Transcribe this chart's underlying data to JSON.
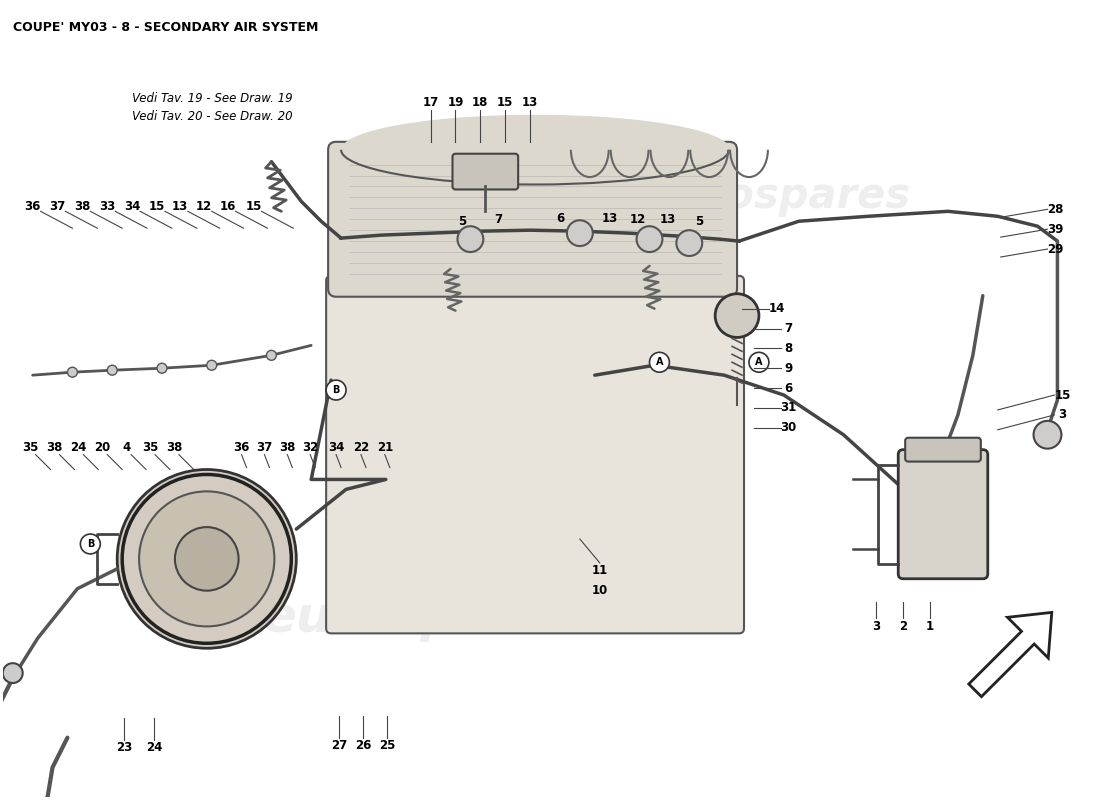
{
  "title": "COUPE' MY03 - 8 - SECONDARY AIR SYSTEM",
  "title_fontsize": 9,
  "bg_color": "#ffffff",
  "fig_width": 11.0,
  "fig_height": 8.0,
  "watermark": "eurospares",
  "note_line1": "Vedi Tav. 19 - See Draw. 19",
  "note_line2": "Vedi Tav. 20 - See Draw. 20"
}
